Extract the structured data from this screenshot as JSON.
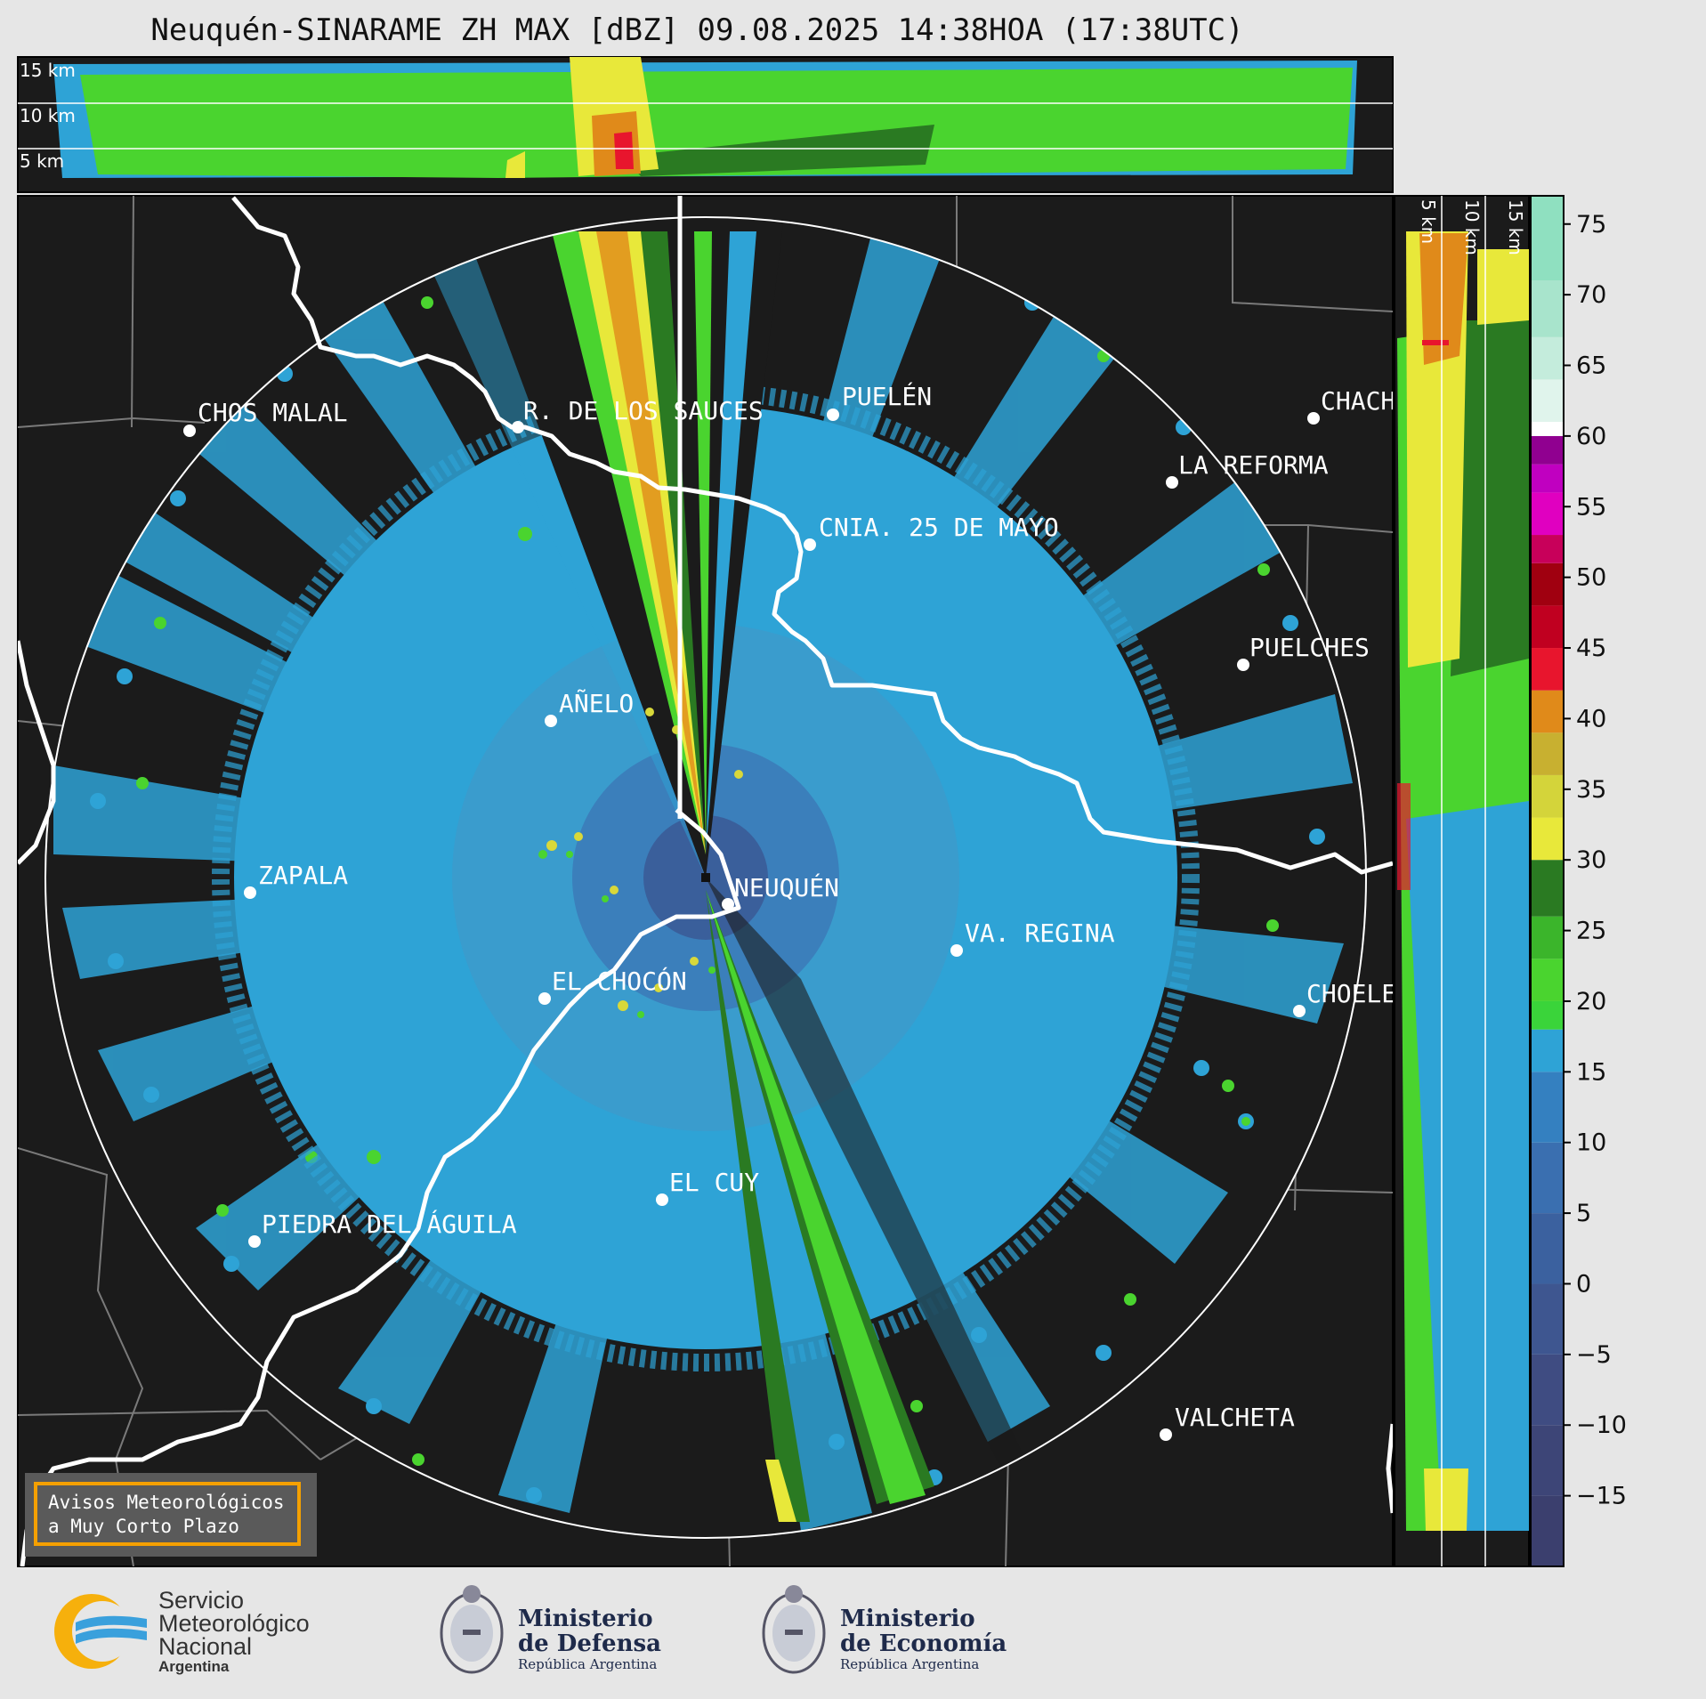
{
  "title": "Neuquén-SINARAME ZH MAX [dBZ] 09.08.2025 14:38HOA (17:38UTC)",
  "top_panel": {
    "km_labels": [
      "15 km",
      "10 km",
      "5 km"
    ]
  },
  "side_panel": {
    "km_labels": [
      "5 km",
      "10 km",
      "15 km"
    ]
  },
  "cities": [
    {
      "name": "CHOS MALAL"
    },
    {
      "name": "R. DE LOS SAUCES"
    },
    {
      "name": "PUELÉN"
    },
    {
      "name": "CHACH"
    },
    {
      "name": "LA REFORMA"
    },
    {
      "name": "CNIA. 25 DE MAYO"
    },
    {
      "name": "PUELCHES"
    },
    {
      "name": "AÑELO"
    },
    {
      "name": "ZAPALA"
    },
    {
      "name": "NEUQUÉN"
    },
    {
      "name": "VA. REGINA"
    },
    {
      "name": "EL CHOCÓN"
    },
    {
      "name": "CHOELE"
    },
    {
      "name": "EL CUY"
    },
    {
      "name": "PIEDRA DEL ÁGUILA"
    },
    {
      "name": "VALCHETA"
    }
  ],
  "colorbar": {
    "unit": "dBZ",
    "ticks": [
      "75",
      "70",
      "65",
      "60",
      "55",
      "50",
      "45",
      "40",
      "35",
      "30",
      "25",
      "20",
      "15",
      "10",
      "5",
      "0",
      "−5",
      "−10",
      "−15"
    ],
    "range": [
      -20,
      77
    ],
    "colors": {
      "low": "#3a3f6b",
      "blue": "#2ea3d6",
      "green": "#4ad42f",
      "darkgreen": "#2a7a22",
      "yellow": "#e8e83a",
      "orange": "#e08a1a",
      "red": "#e8152d",
      "magenta": "#d400d4",
      "white": "#ffffff",
      "teal": "#8fe0c0"
    }
  },
  "warning_box": {
    "line1": "Avisos Meteorológicos",
    "line2": "a Muy Corto Plazo",
    "border_color": "#f5a000"
  },
  "logos": {
    "smn": {
      "line1": "Servicio",
      "line2": "Meteorológico",
      "line3": "Nacional",
      "country": "Argentina"
    },
    "defensa": {
      "line1": "Ministerio",
      "line2": "de Defensa",
      "sub": "República Argentina"
    },
    "economia": {
      "line1": "Ministerio",
      "line2": "de Economía",
      "sub": "República Argentina"
    }
  }
}
